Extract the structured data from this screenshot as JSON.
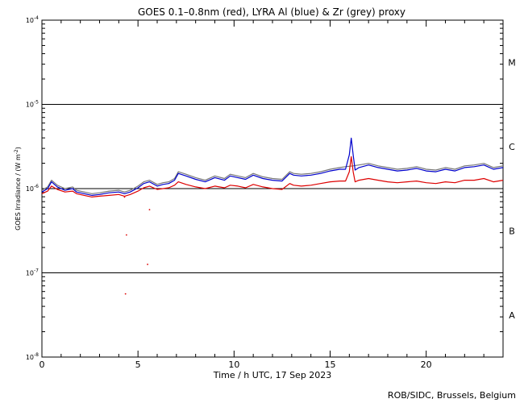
{
  "chart_data": {
    "type": "line",
    "title": "GOES 0.1–0.8nm (red), LYRA Al (blue) & Zr (grey) proxy",
    "xlabel": "Time / h UTC, 17 Sep 2023",
    "ylabel_prefix": "GOES Irradiance / (W m",
    "ylabel_sup": "-2",
    "ylabel_suffix": ")",
    "xlim": [
      0,
      24
    ],
    "ylim_log10": [
      -8,
      -4
    ],
    "x_ticks": [
      {
        "value": 0,
        "label": "0"
      },
      {
        "value": 5,
        "label": "5"
      },
      {
        "value": 10,
        "label": "10"
      },
      {
        "value": 15,
        "label": "15"
      },
      {
        "value": 20,
        "label": "20"
      }
    ],
    "y_ticks": [
      {
        "exp": -4,
        "base": "10",
        "sup": "-4"
      },
      {
        "exp": -5,
        "base": "10",
        "sup": "-5"
      },
      {
        "exp": -6,
        "base": "10",
        "sup": "-6"
      },
      {
        "exp": -7,
        "base": "10",
        "sup": "-7"
      },
      {
        "exp": -8,
        "base": "10",
        "sup": "-8"
      }
    ],
    "flare_class_lines": [
      -5,
      -6,
      -7
    ],
    "flare_classes": [
      {
        "label": "M",
        "center_log10": -4.5
      },
      {
        "label": "C",
        "center_log10": -5.5
      },
      {
        "label": "B",
        "center_log10": -6.5
      },
      {
        "label": "A",
        "center_log10": -7.5
      }
    ],
    "series": [
      {
        "name": "LYRA Zr (grey) proxy",
        "color": "#777777",
        "x": [
          0,
          0.3,
          0.5,
          0.8,
          1.2,
          1.6,
          1.8,
          2.2,
          2.6,
          3,
          3.5,
          4,
          4.3,
          4.6,
          5,
          5.3,
          5.6,
          6,
          6.3,
          6.6,
          6.9,
          7.1,
          7.5,
          8,
          8.5,
          9,
          9.5,
          9.8,
          10.2,
          10.6,
          11,
          11.5,
          12,
          12.5,
          12.9,
          13.1,
          13.5,
          14,
          14.5,
          15,
          15.5,
          15.8,
          16.2,
          16.5,
          17,
          17.5,
          18,
          18.5,
          19,
          19.5,
          20,
          20.5,
          21,
          21.5,
          22,
          22.5,
          23,
          23.5,
          24
        ],
        "log10": [
          -6.02,
          -5.98,
          -5.9,
          -5.96,
          -6.0,
          -5.98,
          -6.02,
          -6.04,
          -6.06,
          -6.05,
          -6.03,
          -6.02,
          -6.04,
          -6.02,
          -5.97,
          -5.92,
          -5.9,
          -5.95,
          -5.93,
          -5.92,
          -5.88,
          -5.8,
          -5.83,
          -5.87,
          -5.9,
          -5.85,
          -5.88,
          -5.83,
          -5.85,
          -5.87,
          -5.82,
          -5.86,
          -5.88,
          -5.89,
          -5.8,
          -5.82,
          -5.83,
          -5.82,
          -5.8,
          -5.77,
          -5.75,
          -5.74,
          -5.73,
          -5.72,
          -5.7,
          -5.73,
          -5.75,
          -5.77,
          -5.76,
          -5.74,
          -5.77,
          -5.78,
          -5.75,
          -5.77,
          -5.73,
          -5.72,
          -5.7,
          -5.75,
          -5.73
        ]
      },
      {
        "name": "LYRA Al (blue)",
        "color": "#0000cc",
        "x": [
          0,
          0.3,
          0.5,
          0.8,
          1.2,
          1.6,
          1.8,
          2.2,
          2.6,
          3,
          3.5,
          4,
          4.3,
          4.6,
          5,
          5.3,
          5.6,
          6,
          6.3,
          6.6,
          6.9,
          7.1,
          7.5,
          8,
          8.5,
          9,
          9.5,
          9.8,
          10.2,
          10.6,
          11,
          11.5,
          12,
          12.5,
          12.9,
          13.1,
          13.5,
          14,
          14.5,
          15,
          15.5,
          15.8,
          16.0,
          16.1,
          16.2,
          16.3,
          16.5,
          17,
          17.5,
          18,
          18.5,
          19,
          19.5,
          20,
          20.5,
          21,
          21.5,
          22,
          22.5,
          23,
          23.5,
          24
        ],
        "log10": [
          -6.04,
          -6.0,
          -5.92,
          -5.98,
          -6.02,
          -6.0,
          -6.04,
          -6.06,
          -6.08,
          -6.07,
          -6.05,
          -6.04,
          -6.06,
          -6.04,
          -5.99,
          -5.94,
          -5.92,
          -5.97,
          -5.95,
          -5.94,
          -5.9,
          -5.82,
          -5.85,
          -5.89,
          -5.92,
          -5.87,
          -5.9,
          -5.85,
          -5.87,
          -5.89,
          -5.84,
          -5.88,
          -5.9,
          -5.91,
          -5.82,
          -5.84,
          -5.85,
          -5.84,
          -5.82,
          -5.79,
          -5.77,
          -5.77,
          -5.6,
          -5.4,
          -5.6,
          -5.78,
          -5.75,
          -5.72,
          -5.75,
          -5.77,
          -5.79,
          -5.78,
          -5.76,
          -5.79,
          -5.8,
          -5.77,
          -5.79,
          -5.75,
          -5.74,
          -5.72,
          -5.77,
          -5.75
        ]
      },
      {
        "name": "GOES 0.1–0.8nm (red)",
        "color": "#dd0000",
        "x": [
          0,
          0.3,
          0.5,
          0.8,
          1.2,
          1.6,
          1.8,
          2.2,
          2.6,
          3,
          3.5,
          4,
          4.3,
          4.6,
          5,
          5.3,
          5.6,
          6,
          6.3,
          6.6,
          6.9,
          7.1,
          7.5,
          8,
          8.5,
          9,
          9.5,
          9.8,
          10.2,
          10.6,
          11,
          11.5,
          12,
          12.5,
          12.9,
          13.1,
          13.5,
          14,
          14.5,
          15,
          15.5,
          15.8,
          16.0,
          16.1,
          16.2,
          16.3,
          16.5,
          17,
          17.5,
          18,
          18.5,
          19,
          19.5,
          20,
          20.5,
          21,
          21.5,
          22,
          22.5,
          23,
          23.5,
          24
        ],
        "log10": [
          -6.06,
          -6.03,
          -5.97,
          -6.01,
          -6.04,
          -6.03,
          -6.06,
          -6.08,
          -6.1,
          -6.09,
          -6.08,
          -6.07,
          -6.09,
          -6.07,
          -6.03,
          -5.99,
          -5.97,
          -6.01,
          -6.0,
          -5.99,
          -5.96,
          -5.92,
          -5.95,
          -5.98,
          -6.0,
          -5.97,
          -5.99,
          -5.96,
          -5.97,
          -5.99,
          -5.95,
          -5.98,
          -6.0,
          -6.01,
          -5.94,
          -5.96,
          -5.97,
          -5.96,
          -5.94,
          -5.92,
          -5.91,
          -5.91,
          -5.8,
          -5.62,
          -5.8,
          -5.92,
          -5.9,
          -5.88,
          -5.9,
          -5.92,
          -5.93,
          -5.92,
          -5.91,
          -5.93,
          -5.94,
          -5.92,
          -5.93,
          -5.9,
          -5.9,
          -5.88,
          -5.92,
          -5.9
        ]
      }
    ],
    "outlier_points": [
      {
        "name": "GOES 0.1–0.8nm (red)",
        "color": "#dd0000",
        "x": 4.35,
        "log10": -7.25
      },
      {
        "name": "GOES 0.1–0.8nm (red)",
        "color": "#dd0000",
        "x": 4.4,
        "log10": -6.55
      },
      {
        "name": "GOES 0.1–0.8nm (red)",
        "color": "#dd0000",
        "x": 5.5,
        "log10": -6.9
      },
      {
        "name": "GOES 0.1–0.8nm (red)",
        "color": "#dd0000",
        "x": 5.6,
        "log10": -6.25
      },
      {
        "name": "GOES 0.1–0.8nm (red)",
        "color": "#dd0000",
        "x": 4.3,
        "log10": -6.1
      }
    ]
  },
  "footer": {
    "credit": "ROB/SIDC, Brussels, Belgium"
  }
}
